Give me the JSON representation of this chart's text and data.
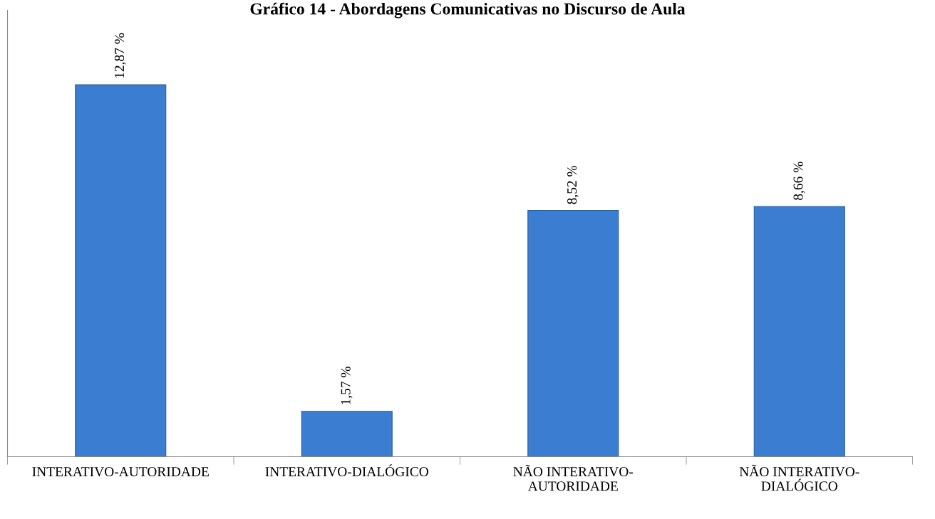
{
  "chart_data": {
    "type": "bar",
    "title": "Gráfico 14 - Abordagens Comunicativas no Discurso de Aula",
    "categories": [
      "INTERATIVO-AUTORIDADE",
      "INTERATIVO-DIALÓGICO",
      "NÃO INTERATIVO-\nAUTORIDADE",
      "NÃO INTERATIVO-\nDIALÓGICO"
    ],
    "values": [
      12.87,
      1.57,
      8.52,
      8.66
    ],
    "value_labels": [
      "12,87 %",
      "1,57 %",
      "8,52 %",
      "8,66 %"
    ],
    "color": "#3b7dd0",
    "grid": false,
    "legend": false
  }
}
